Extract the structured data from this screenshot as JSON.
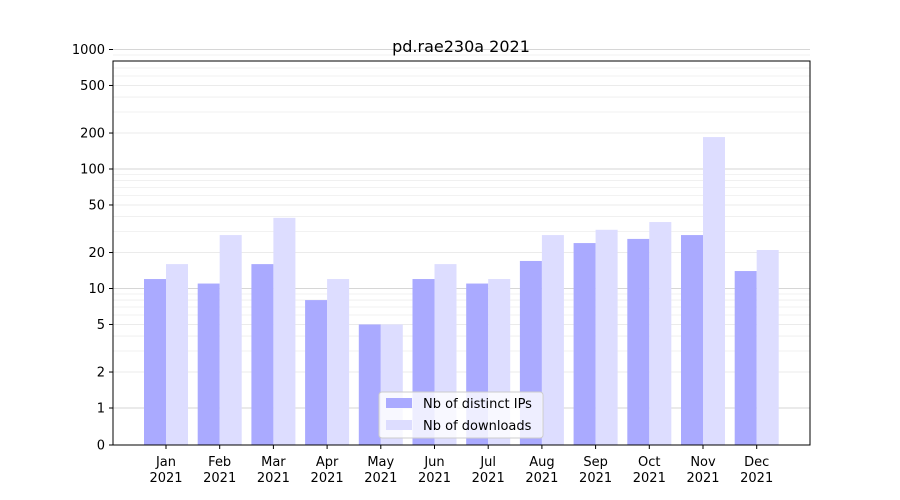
{
  "chart_data": {
    "type": "bar",
    "title": "pd.rae230a 2021",
    "xlabel": "",
    "ylabel": "",
    "yscale": "symlog",
    "ylim": [
      0,
      1300
    ],
    "grid": "horizontal",
    "legend_position": "bottom-center",
    "categories": [
      "Jan\n2021",
      "Feb\n2021",
      "Mar\n2021",
      "Apr\n2021",
      "May\n2021",
      "Jun\n2021",
      "Jul\n2021",
      "Aug\n2021",
      "Sep\n2021",
      "Oct\n2021",
      "Nov\n2021",
      "Dec\n2021"
    ],
    "yticks": [
      "0",
      "1",
      "2",
      "5",
      "10",
      "20",
      "50",
      "100",
      "200",
      "500",
      "1000"
    ],
    "series": [
      {
        "name": "Nb of distinct IPs",
        "color": "#aaaaff",
        "values": [
          12,
          11,
          16,
          8,
          5,
          12,
          11,
          17,
          24,
          26,
          28,
          14
        ]
      },
      {
        "name": "Nb of downloads",
        "color": "#ddddff",
        "values": [
          16,
          28,
          39,
          12,
          5,
          16,
          12,
          28,
          31,
          36,
          185,
          21
        ]
      }
    ]
  }
}
